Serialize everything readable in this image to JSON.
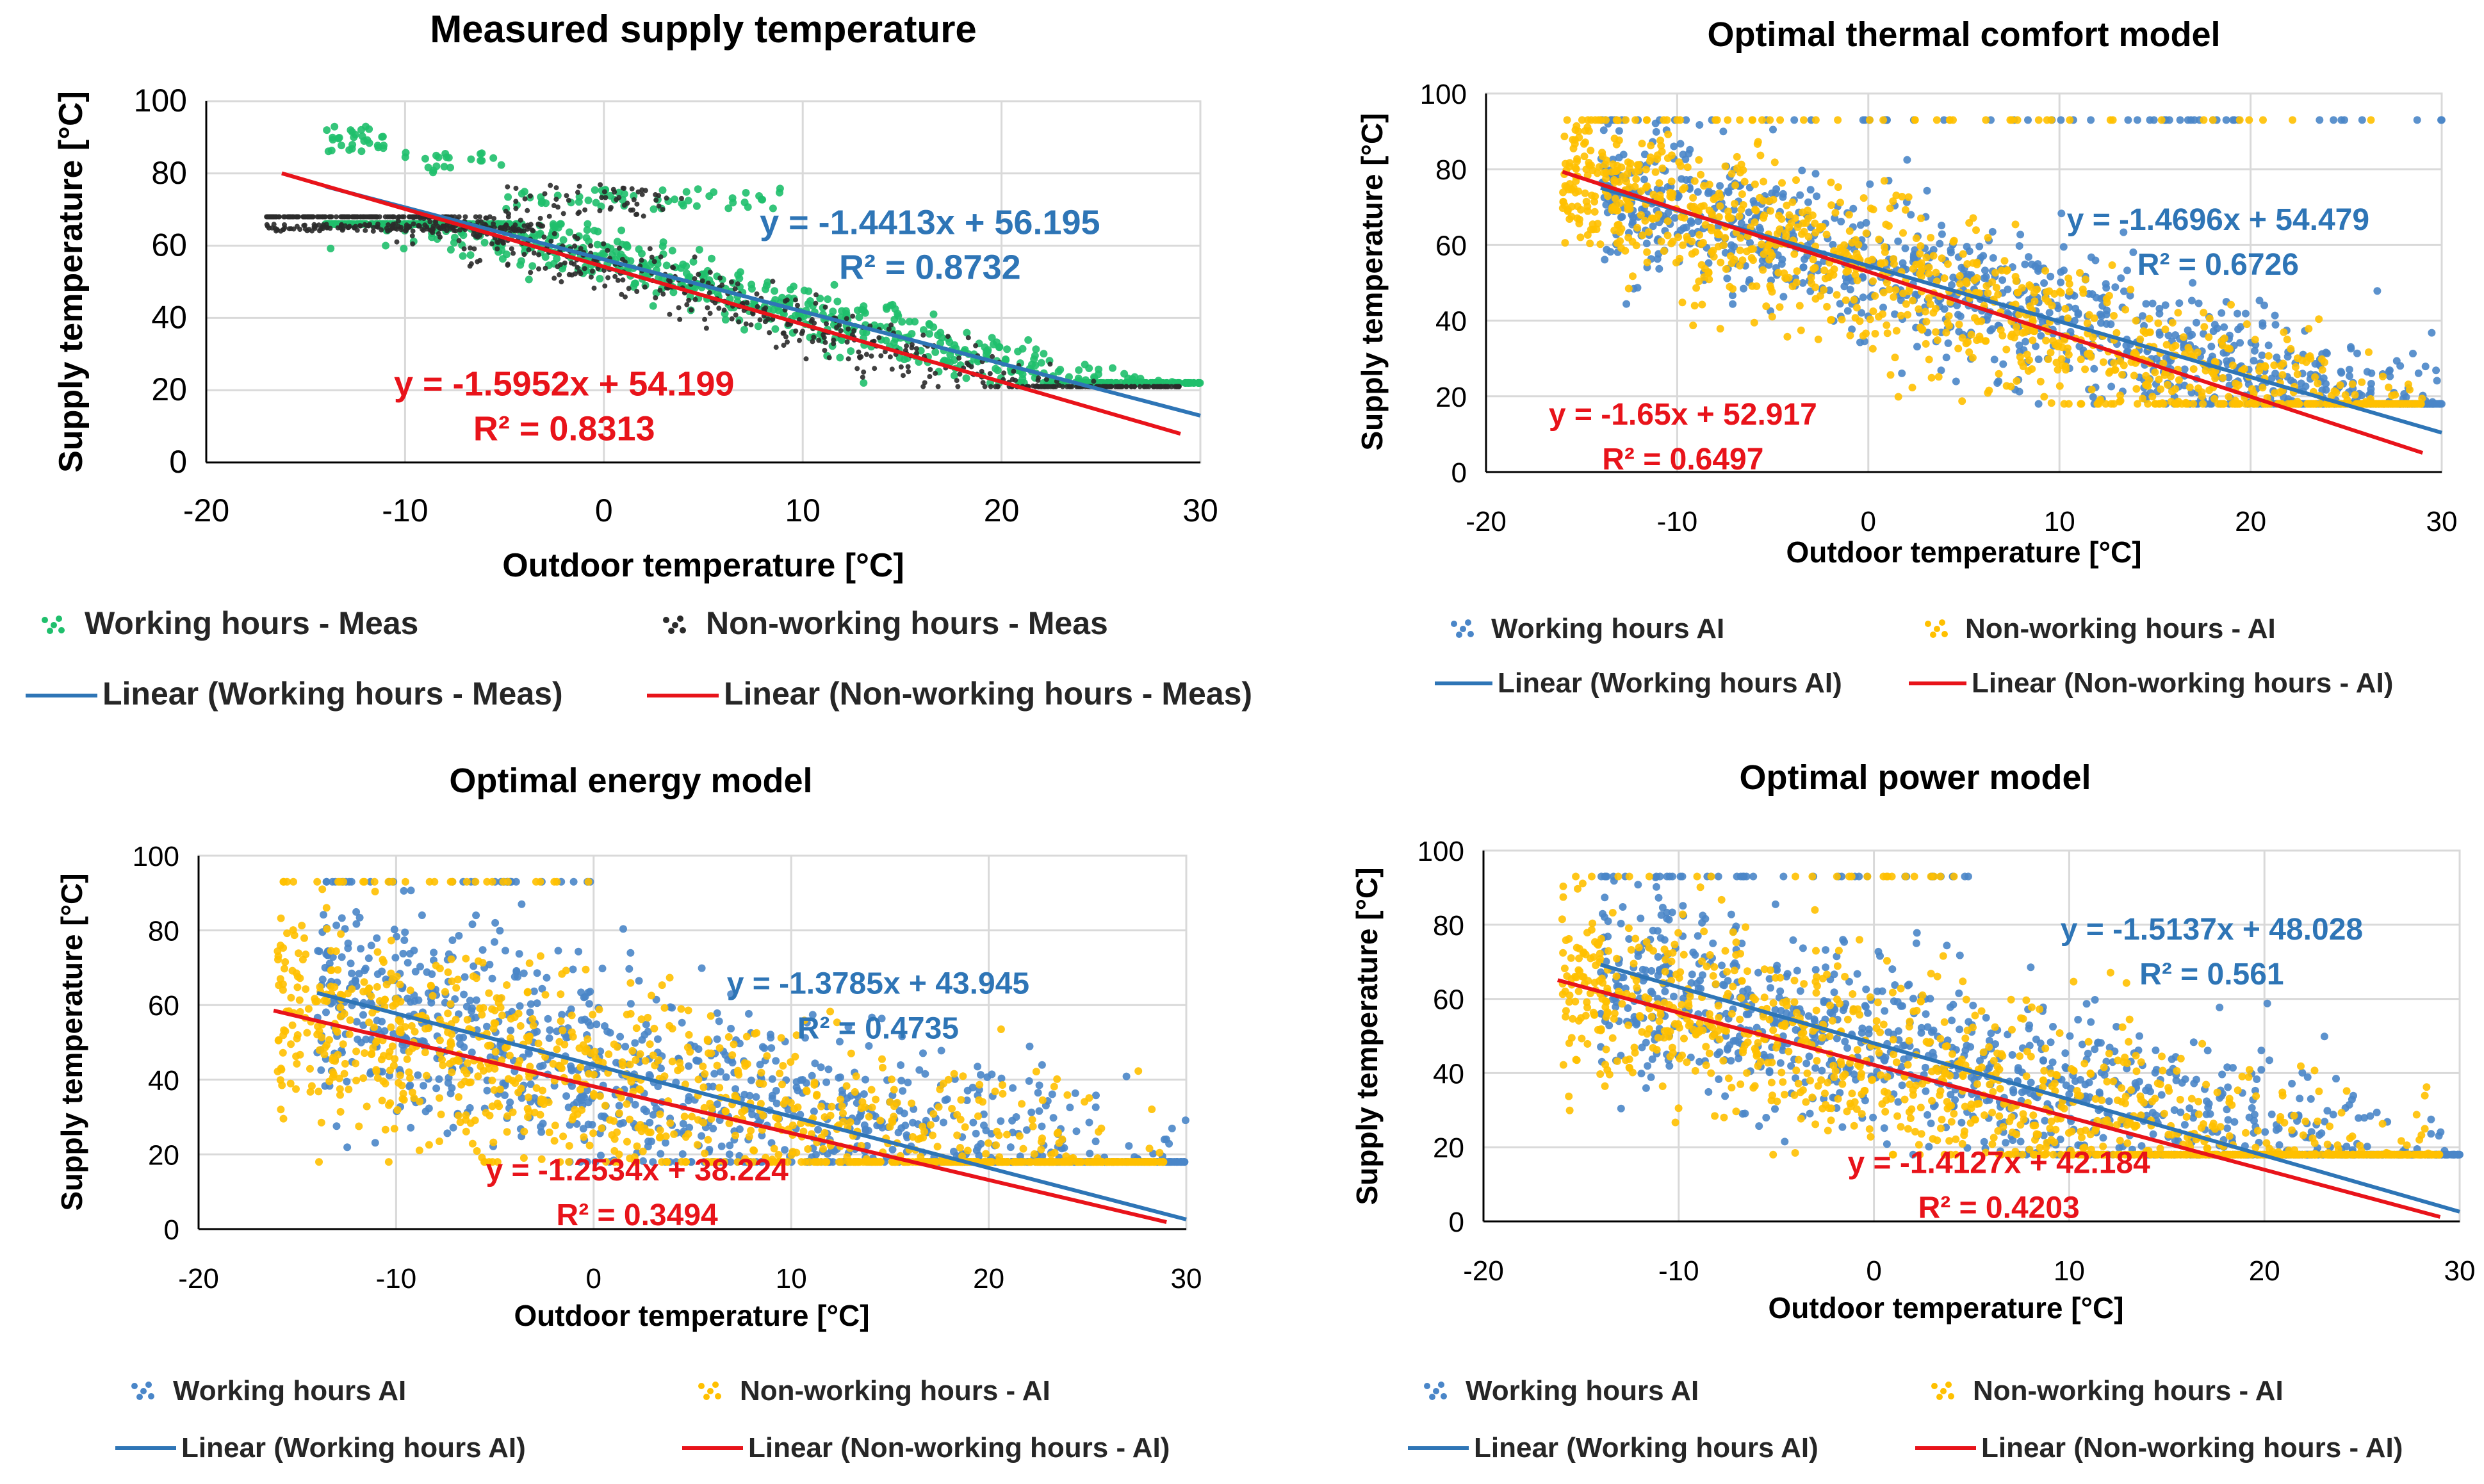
{
  "colors": {
    "green": "#1fbf6c",
    "black": "#2b2b2b",
    "blue": "#4a86c8",
    "yellow": "#ffc000",
    "blue_line": "#2e75b6",
    "red_line": "#e8131a",
    "blue_eq": "#2e75b6",
    "red_eq": "#e8131a",
    "grid": "#d9d9d9",
    "axis": "#000000",
    "label": "#404040"
  },
  "chart_data": [
    {
      "id": "measured",
      "type": "scatter",
      "title": "Measured supply temperature",
      "xlabel": "Outdoor temperature [°C]",
      "ylabel": "Supply temperature [°C]",
      "xlim": [
        -20,
        30
      ],
      "ylim": [
        0,
        100
      ],
      "xticks": [
        "-20",
        "-10",
        "0",
        "10",
        "20",
        "30"
      ],
      "yticks": [
        "0",
        "20",
        "40",
        "60",
        "80",
        "100"
      ],
      "grid": true,
      "series": [
        {
          "name": "Working hours - Meas",
          "kind": "points",
          "color_key": "green",
          "profile": "measured_working",
          "slope": -1.4413,
          "intercept": 56.195,
          "x_range": [
            -14,
            30
          ]
        },
        {
          "name": "Non-working hours - Meas",
          "kind": "points",
          "color_key": "black",
          "profile": "measured_nonworking",
          "slope": -1.5952,
          "intercept": 54.199,
          "x_range": [
            -17,
            29
          ]
        },
        {
          "name": "Linear (Working hours - Meas)",
          "kind": "line",
          "color_key": "blue_line",
          "slope": -1.4413,
          "intercept": 56.195,
          "x_range": [
            -14,
            30
          ]
        },
        {
          "name": "Linear (Non-working hours - Meas)",
          "kind": "line",
          "color_key": "red_line",
          "slope": -1.5952,
          "intercept": 54.199,
          "x_range": [
            -16.2,
            29
          ]
        }
      ],
      "equations": [
        {
          "eq": "y = -1.4413x + 56.195",
          "r2": "R² = 0.8732",
          "color_key": "blue_eq",
          "at": [
            16.4,
            63.2
          ]
        },
        {
          "eq": "y = -1.5952x + 54.199",
          "r2": "R² = 0.8313",
          "color_key": "red_eq",
          "at": [
            -2.0,
            18.5
          ]
        }
      ],
      "legend_placement": "bottom"
    },
    {
      "id": "comfort",
      "type": "scatter",
      "title": "Optimal thermal comfort model",
      "xlabel": "Outdoor temperature [°C]",
      "ylabel": "Supply temperature [°C]",
      "xlim": [
        -20,
        30
      ],
      "ylim": [
        0,
        100
      ],
      "xticks": [
        "-20",
        "-10",
        "0",
        "10",
        "20",
        "30"
      ],
      "yticks": [
        "0",
        "20",
        "40",
        "60",
        "80",
        "100"
      ],
      "grid": true,
      "series": [
        {
          "name": "Working hours AI",
          "kind": "points",
          "color_key": "blue",
          "profile": "ai_comfort",
          "slope": -1.4696,
          "intercept": 54.479,
          "x_range": [
            -14,
            30
          ]
        },
        {
          "name": "Non-working hours - AI",
          "kind": "points",
          "color_key": "yellow",
          "profile": "ai_comfort",
          "slope": -1.65,
          "intercept": 52.917,
          "x_range": [
            -16,
            29
          ]
        },
        {
          "name": "Linear (Working hours AI)",
          "kind": "line",
          "color_key": "blue_line",
          "slope": -1.4696,
          "intercept": 54.479,
          "x_range": [
            -14,
            30
          ]
        },
        {
          "name": "Linear (Non-working hours - AI)",
          "kind": "line",
          "color_key": "red_line",
          "slope": -1.65,
          "intercept": 52.917,
          "x_range": [
            -16,
            29
          ]
        }
      ],
      "equations": [
        {
          "eq": "y = -1.4696x + 54.479",
          "r2": "R² = 0.6726",
          "color_key": "blue_eq",
          "at": [
            18.3,
            64.0
          ]
        },
        {
          "eq": "y = -1.65x + 52.917",
          "r2": "R² = 0.6497",
          "color_key": "red_eq",
          "at": [
            -9.7,
            12.5
          ]
        }
      ],
      "legend_placement": "bottom"
    },
    {
      "id": "energy",
      "type": "scatter",
      "title": "Optimal energy model",
      "xlabel": "Outdoor temperature [°C]",
      "ylabel": "Supply temperature [°C]",
      "xlim": [
        -20,
        30
      ],
      "ylim": [
        0,
        100
      ],
      "xticks": [
        "-20",
        "-10",
        "0",
        "10",
        "20",
        "30"
      ],
      "yticks": [
        "0",
        "20",
        "40",
        "60",
        "80",
        "100"
      ],
      "grid": true,
      "series": [
        {
          "name": "Working hours AI",
          "kind": "points",
          "color_key": "blue",
          "profile": "ai_energy",
          "slope": -1.3785,
          "intercept": 43.945,
          "x_range": [
            -14,
            30
          ]
        },
        {
          "name": "Non-working hours - AI",
          "kind": "points",
          "color_key": "yellow",
          "profile": "ai_energy",
          "slope": -1.2534,
          "intercept": 38.224,
          "x_range": [
            -16,
            29
          ]
        },
        {
          "name": "Linear (Working hours AI)",
          "kind": "line",
          "color_key": "blue_line",
          "slope": -1.3785,
          "intercept": 43.945,
          "x_range": [
            -14,
            30
          ]
        },
        {
          "name": "Linear (Non-working hours - AI)",
          "kind": "line",
          "color_key": "red_line",
          "slope": -1.2534,
          "intercept": 38.224,
          "x_range": [
            -16.2,
            29
          ]
        }
      ],
      "equations": [
        {
          "eq": "y = -1.3785x + 43.945",
          "r2": "R² = 0.4735",
          "color_key": "blue_eq",
          "at": [
            14.4,
            63.0
          ]
        },
        {
          "eq": "y = -1.2534x + 38.224",
          "r2": "R² = 0.3494",
          "color_key": "red_eq",
          "at": [
            2.2,
            13.0
          ]
        }
      ],
      "legend_placement": "bottom"
    },
    {
      "id": "power",
      "type": "scatter",
      "title": "Optimal power model",
      "xlabel": "Outdoor temperature [°C]",
      "ylabel": "Supply temperature [°C]",
      "xlim": [
        -20,
        30
      ],
      "ylim": [
        0,
        100
      ],
      "xticks": [
        "-20",
        "-10",
        "0",
        "10",
        "20",
        "30"
      ],
      "yticks": [
        "0",
        "20",
        "40",
        "60",
        "80",
        "100"
      ],
      "grid": true,
      "series": [
        {
          "name": "Working hours AI",
          "kind": "points",
          "color_key": "blue",
          "profile": "ai_power",
          "slope": -1.5137,
          "intercept": 48.028,
          "x_range": [
            -14,
            30
          ]
        },
        {
          "name": "Non-working hours - AI",
          "kind": "points",
          "color_key": "yellow",
          "profile": "ai_power",
          "slope": -1.4127,
          "intercept": 42.184,
          "x_range": [
            -16,
            29
          ]
        },
        {
          "name": "Linear (Working hours AI)",
          "kind": "line",
          "color_key": "blue_line",
          "slope": -1.5137,
          "intercept": 48.028,
          "x_range": [
            -14,
            30
          ]
        },
        {
          "name": "Linear (Non-working hours - AI)",
          "kind": "line",
          "color_key": "red_line",
          "slope": -1.4127,
          "intercept": 42.184,
          "x_range": [
            -16.2,
            29
          ]
        }
      ],
      "equations": [
        {
          "eq": "y = -1.5137x + 48.028",
          "r2": "R² = 0.561",
          "color_key": "blue_eq",
          "at": [
            17.3,
            76.0
          ]
        },
        {
          "eq": "y = -1.4127x + 42.184",
          "r2": "R² = 0.4203",
          "color_key": "red_eq",
          "at": [
            6.4,
            13.0
          ]
        }
      ],
      "legend_placement": "bottom"
    }
  ]
}
